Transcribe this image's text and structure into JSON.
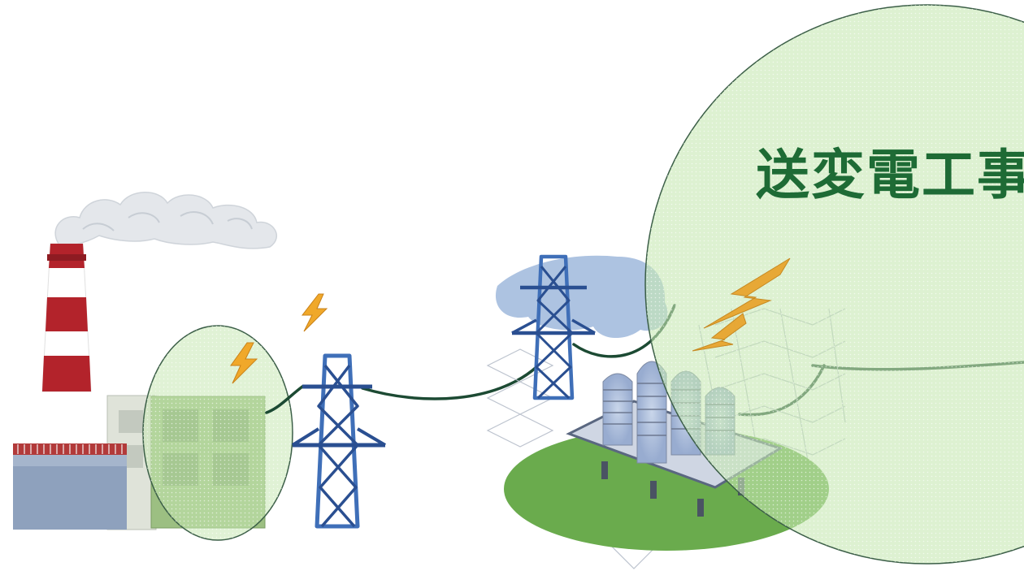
{
  "caption": {
    "text": "送変電工事",
    "color": "#1e6b35"
  },
  "colors": {
    "highlight_fill": "#c6e7b2",
    "highlight_stroke": "#3b5e47",
    "tower": "#3f6fb8",
    "tower_dark": "#2a4f91",
    "wire": "#1c4a33",
    "bolt": "#f0a82a",
    "chimney_red": "#b3232b",
    "smoke": "#e3e6ea",
    "plant_wall": "#8ea1bd",
    "ground_green": "#6aab4d",
    "insulator": "#a9afc0"
  },
  "icons": [
    "factory-icon",
    "chimney-icon",
    "smoke-icon",
    "lightning-bolt-icon",
    "transmission-tower-icon",
    "substation-icon"
  ]
}
